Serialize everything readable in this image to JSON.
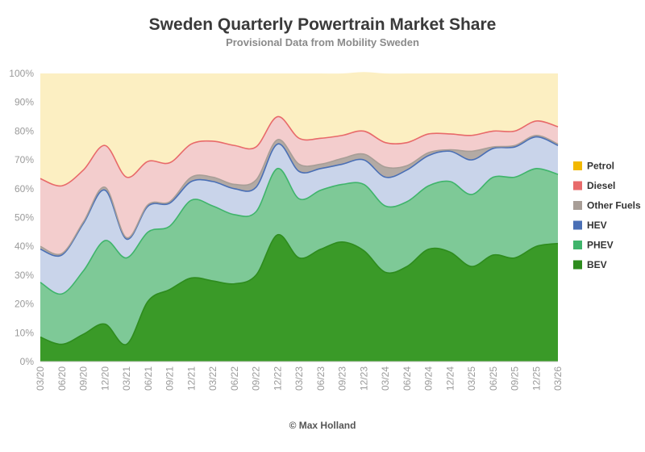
{
  "chart_data": {
    "type": "area",
    "stacked": true,
    "title": "Sweden Quarterly Powertrain Market Share",
    "subtitle": "Provisional Data from Mobility Sweden",
    "credit": "© Max Holland",
    "ylim": [
      0,
      100
    ],
    "yticks": [
      "0%",
      "10%",
      "20%",
      "30%",
      "40%",
      "50%",
      "60%",
      "70%",
      "80%",
      "90%",
      "100%"
    ],
    "legend_position": "right",
    "x": [
      "03/20",
      "06/20",
      "09/20",
      "12/20",
      "03/21",
      "06/21",
      "09/21",
      "12/21",
      "03/22",
      "06/22",
      "09/22",
      "12/22",
      "03/23",
      "06/23",
      "09/23",
      "12/23",
      "03/24",
      "06/24",
      "09/24",
      "12/24",
      "03/25",
      "06/25",
      "09/25",
      "12/25",
      "03/26"
    ],
    "series": [
      {
        "name": "BEV",
        "color": "#3a9a28",
        "values": [
          8.5,
          6,
          9.5,
          13,
          6,
          21,
          25,
          29,
          28,
          27,
          30,
          44,
          36,
          39,
          41.5,
          38.5,
          31,
          33,
          39,
          38,
          33,
          37,
          36,
          40,
          41
        ]
      },
      {
        "name": "PHEV",
        "color": "#7ec997",
        "values": [
          19,
          17.5,
          22,
          29,
          30,
          24,
          22,
          27,
          26,
          24,
          22,
          23,
          20.5,
          20.5,
          20,
          23,
          23,
          22.5,
          22,
          24.5,
          25,
          27,
          28,
          27,
          24
        ]
      },
      {
        "name": "HEV",
        "color": "#c9d4ea",
        "values": [
          11.5,
          13.5,
          16.5,
          17.5,
          6.5,
          9,
          8,
          6.5,
          8.5,
          9,
          8.5,
          8.5,
          9.5,
          7.5,
          7,
          8.5,
          10,
          11,
          10.5,
          10.5,
          12,
          10,
          10.5,
          11,
          10
        ]
      },
      {
        "name": "Other Fuels",
        "color": "#b3aaa4",
        "values": [
          1,
          0.5,
          0.5,
          1,
          0.5,
          0.5,
          0.5,
          1.5,
          1.5,
          1.5,
          2.5,
          1.5,
          2.5,
          1.5,
          2,
          2,
          3.5,
          1.5,
          1,
          0.5,
          3,
          0.5,
          0.5,
          0.5,
          0.5
        ]
      },
      {
        "name": "Diesel",
        "color": "#f3cdcd",
        "values": [
          23.5,
          23.5,
          18,
          14.5,
          21,
          15,
          13.5,
          11.5,
          12.5,
          13.5,
          11.5,
          8,
          9,
          9,
          8,
          8,
          8.5,
          8,
          6.5,
          5.5,
          5.5,
          5.5,
          5,
          5,
          6
        ]
      },
      {
        "name": "Petrol",
        "color": "#fcefc2",
        "values": [
          36.5,
          39,
          33.5,
          25,
          36,
          30.5,
          31,
          24.5,
          23.5,
          25,
          25.5,
          15,
          22.5,
          22.5,
          21.5,
          20.5,
          24,
          24,
          21,
          21,
          21.5,
          20,
          20,
          16.5,
          18.5
        ]
      }
    ],
    "legend": [
      {
        "name": "Petrol",
        "color": "#f2b800"
      },
      {
        "name": "Diesel",
        "color": "#e86a6a"
      },
      {
        "name": "Other Fuels",
        "color": "#a89e97"
      },
      {
        "name": "HEV",
        "color": "#4a6fb5"
      },
      {
        "name": "PHEV",
        "color": "#3fb46b"
      },
      {
        "name": "BEV",
        "color": "#2e8c1e"
      }
    ],
    "line_colors": {
      "BEV": "#2e8c1e",
      "PHEV": "#3fb46b",
      "HEV": "#4a6fb5",
      "Other Fuels": "#a89e97",
      "Diesel": "#e86a6a"
    },
    "grid": true
  }
}
